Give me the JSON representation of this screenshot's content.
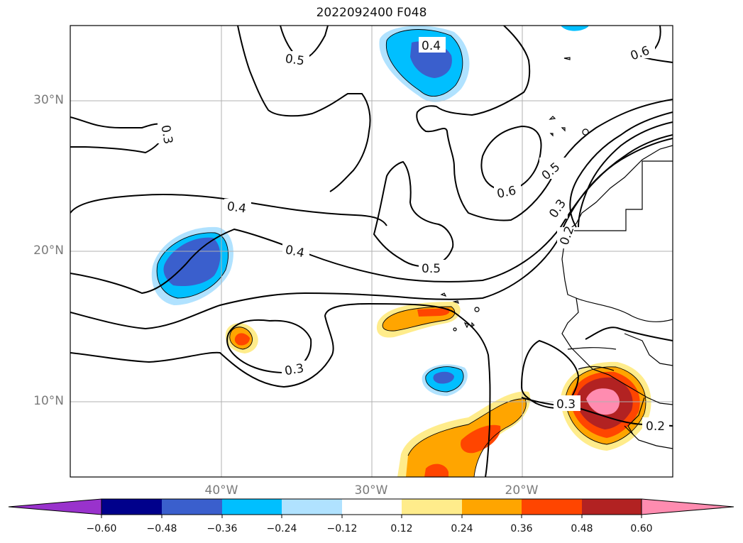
{
  "title": "2022092400 F048",
  "lat_labels": [
    "30°N",
    "20°N",
    "10°N"
  ],
  "lon_labels": [
    "40°W",
    "30°W",
    "20°W"
  ],
  "contour_labels": [
    "0.5",
    "0.4",
    "0.6",
    "0.3",
    "0.6",
    "0.5",
    "0.3",
    "0.4",
    "0.4",
    "0.2",
    "0.5",
    "0.3",
    "0.3",
    "0.2"
  ],
  "colorbar": {
    "ticks": [
      "−0.60",
      "−0.48",
      "−0.36",
      "−0.24",
      "−0.12",
      "0.12",
      "0.24",
      "0.36",
      "0.48",
      "0.60"
    ],
    "colors": [
      "#9932cc",
      "#00008b",
      "#3a5fcd",
      "#00bfff",
      "#b0e2ff",
      "#ffffff",
      "#ffec8b",
      "#ffa500",
      "#ff4500",
      "#b22222",
      "#ff8cb0"
    ]
  }
}
